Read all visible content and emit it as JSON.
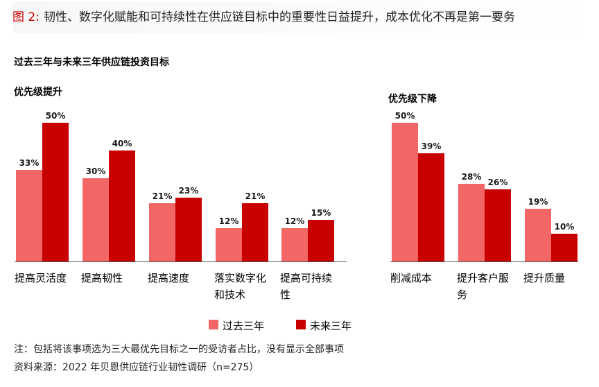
{
  "figure_title": {
    "label": "图 2:",
    "text": "韧性、数字化赋能和可持续性在供应链目标中的重要性日益提升，成本优化不再是第一要务"
  },
  "subtitle": "过去三年与未来三年供应链投资目标",
  "colors": {
    "past": "#f26666",
    "future": "#c80000",
    "axis": "#555555"
  },
  "legend": {
    "past_label": "过去三年",
    "future_label": "未来三年"
  },
  "chart_data": [
    {
      "type": "bar",
      "title": "优先级提升",
      "categories": [
        [
          "提高灵活度"
        ],
        [
          "提高韧性"
        ],
        [
          "提高速度"
        ],
        [
          "落实数字化",
          "和技术"
        ],
        [
          "提高可持续",
          "性"
        ]
      ],
      "series": [
        {
          "name": "过去三年",
          "values": [
            33,
            30,
            21,
            12,
            12
          ]
        },
        {
          "name": "未来三年",
          "values": [
            50,
            40,
            23,
            21,
            15
          ]
        }
      ],
      "value_unit": "%",
      "ylim": [
        0,
        55
      ]
    },
    {
      "type": "bar",
      "title": "优先级下降",
      "categories": [
        [
          "削减成本"
        ],
        [
          "提升客户服",
          "务"
        ],
        [
          "提升质量"
        ]
      ],
      "series": [
        {
          "name": "过去三年",
          "values": [
            50,
            28,
            19
          ]
        },
        {
          "name": "未来三年",
          "values": [
            39,
            26,
            10
          ]
        }
      ],
      "value_unit": "%",
      "ylim": [
        0,
        55
      ]
    }
  ],
  "notes": {
    "note": "注：包括将该事项选为三大最优先目标之一的受访者占比，没有显示全部事项",
    "source": "资料来源：2022 年贝恩供应链行业韧性调研（n=275）"
  }
}
